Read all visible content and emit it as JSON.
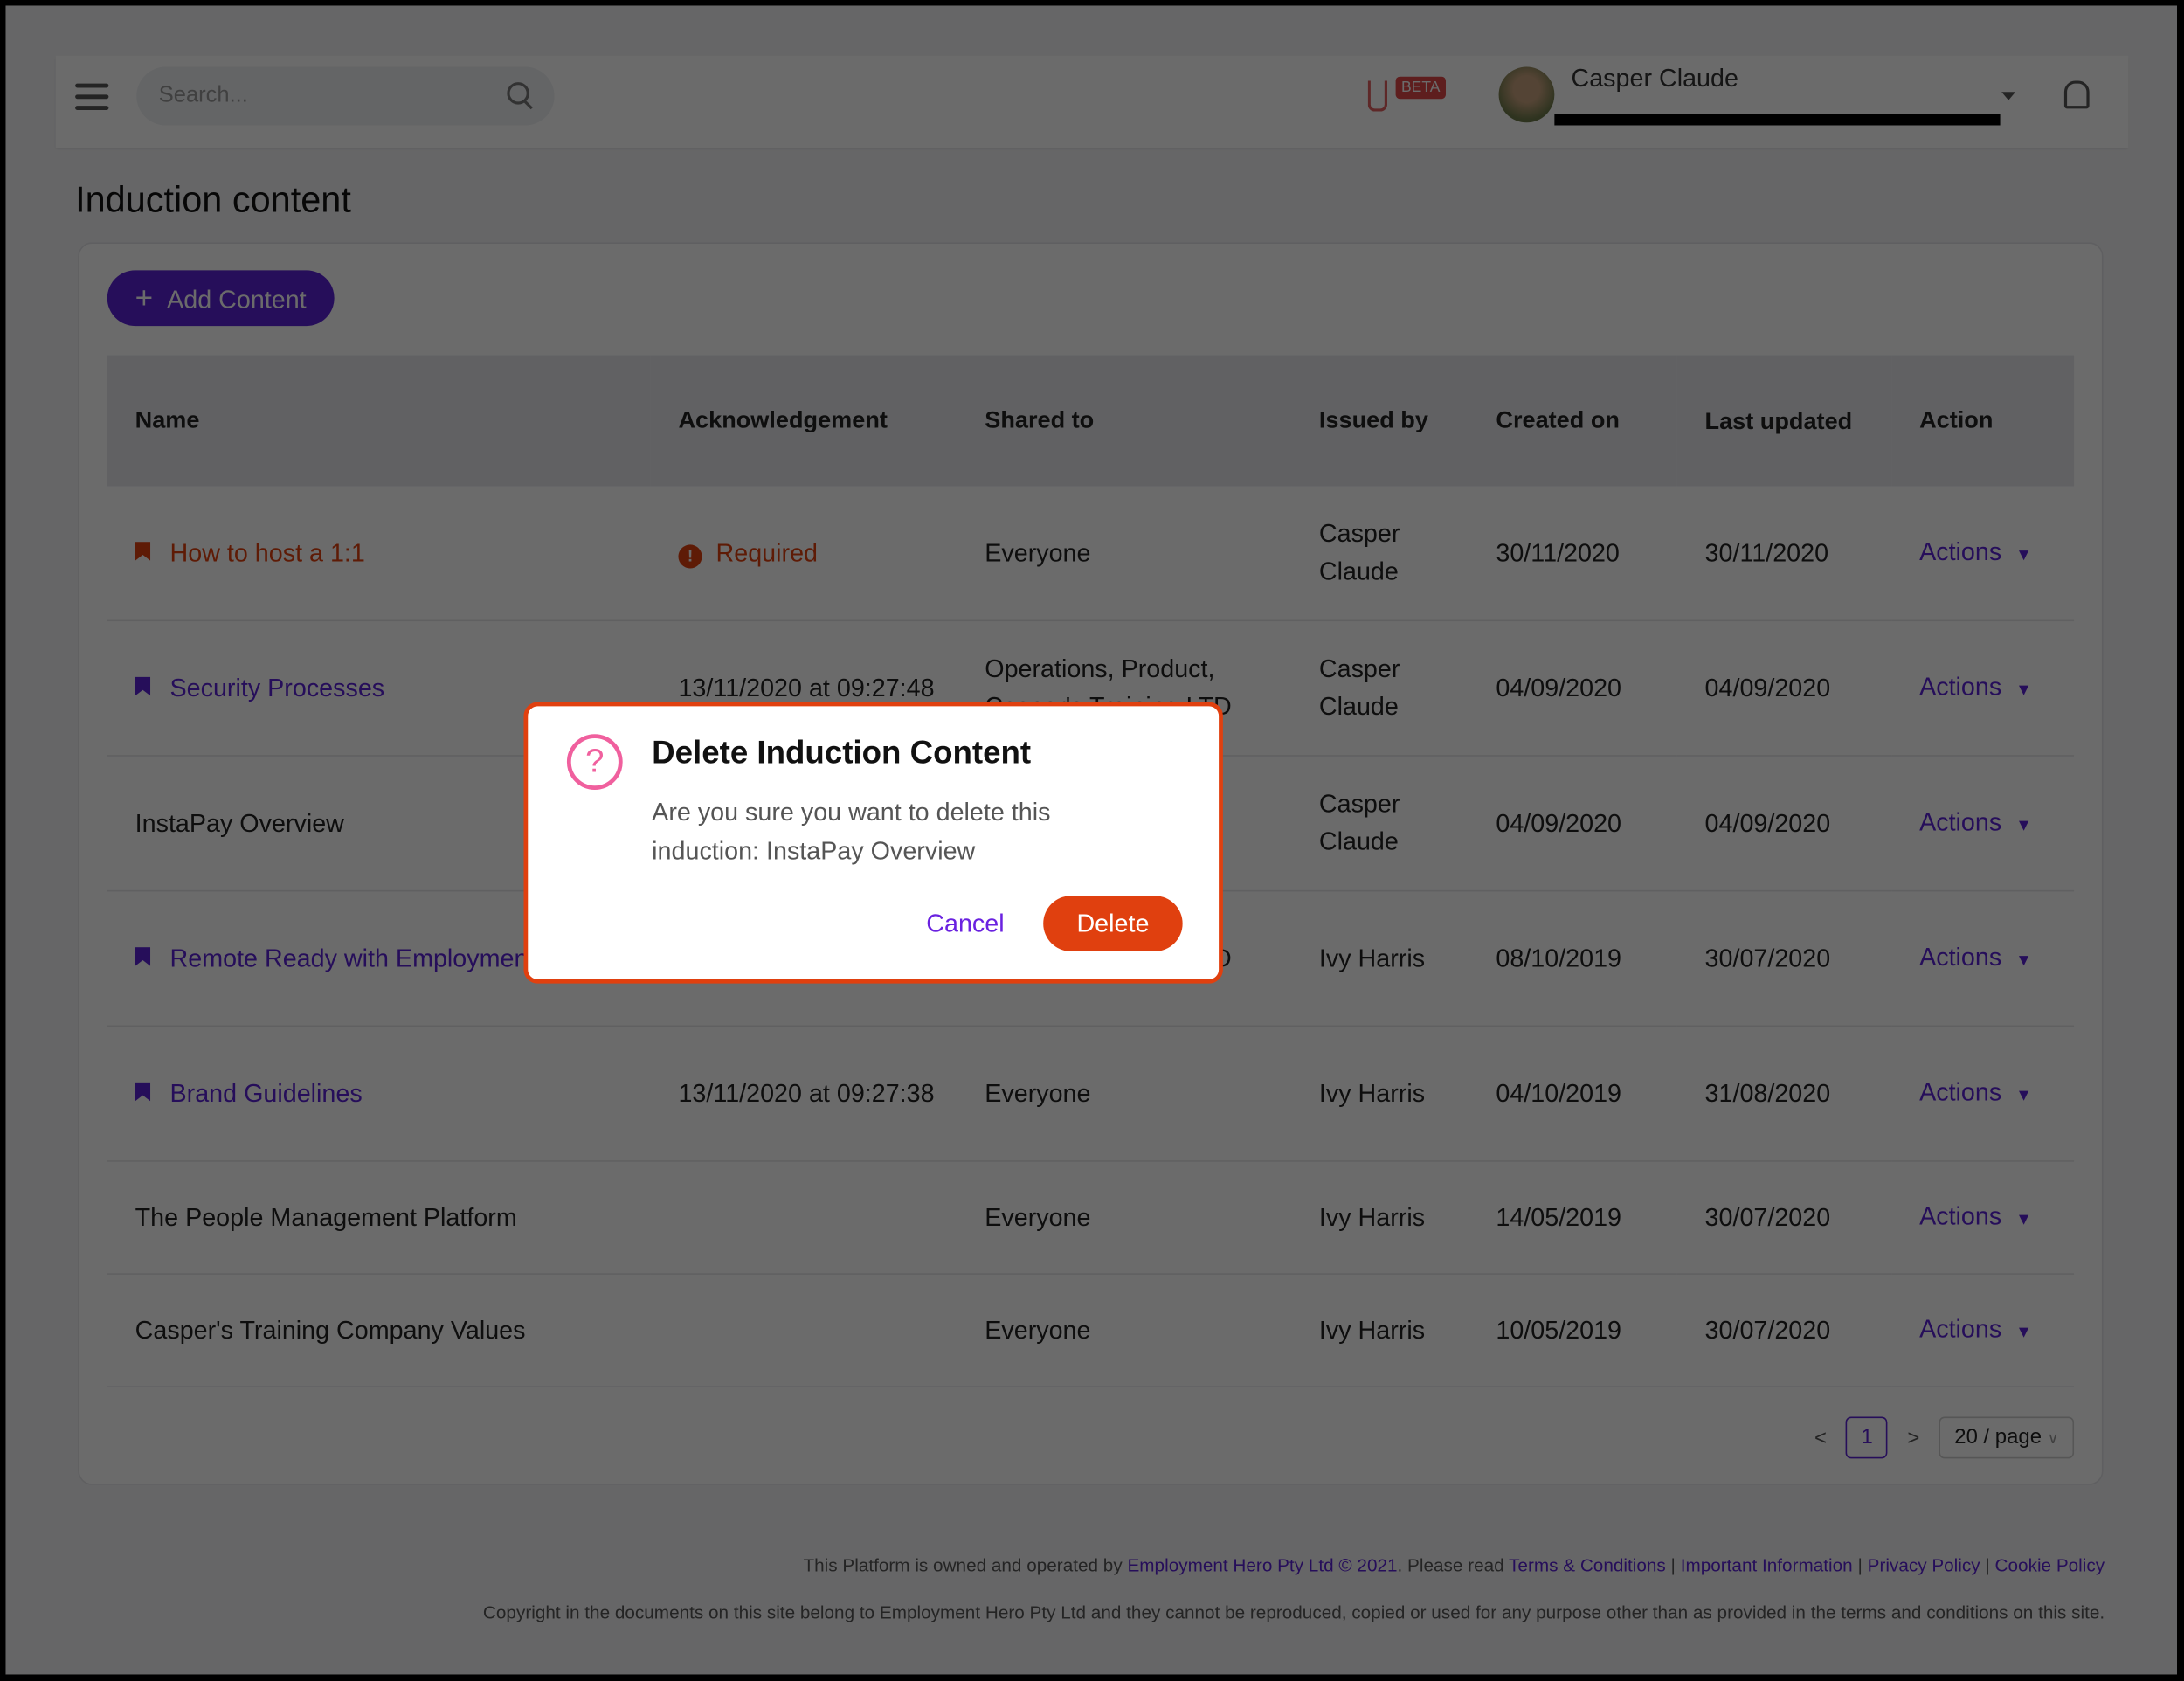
{
  "header": {
    "search_placeholder": "Search...",
    "beta": "BETA",
    "user_name": "Casper Claude"
  },
  "page_title": "Induction content",
  "add_button": "Add Content",
  "table": {
    "columns": [
      "Name",
      "Acknowledgement",
      "Shared to",
      "Issued by",
      "Created on",
      "Last updated",
      "Action"
    ],
    "rows": [
      {
        "name": "How to host a 1:1",
        "ack": "Required",
        "shared": "Everyone",
        "issued": "Casper Claude",
        "created": "30/11/2020",
        "updated": "30/11/2020",
        "action": "Actions"
      },
      {
        "name": "Security Processes",
        "ack": "13/11/2020 at 09:27:48",
        "shared": "Operations, Product, Casper's Training LTD",
        "issued": "Casper Claude",
        "created": "04/09/2020",
        "updated": "04/09/2020",
        "action": "Actions"
      },
      {
        "name": "InstaPay Overview",
        "ack": "",
        "shared": "",
        "issued": "Casper Claude",
        "created": "04/09/2020",
        "updated": "04/09/2020",
        "action": "Actions"
      },
      {
        "name": "Remote Ready with Employment Hero",
        "ack": "",
        "shared": "Casper's Training LTD",
        "issued": "Ivy Harris",
        "created": "08/10/2019",
        "updated": "30/07/2020",
        "action": "Actions"
      },
      {
        "name": "Brand Guidelines",
        "ack": "13/11/2020 at 09:27:38",
        "shared": "Everyone",
        "issued": "Ivy Harris",
        "created": "04/10/2019",
        "updated": "31/08/2020",
        "action": "Actions"
      },
      {
        "name": "The People Management Platform",
        "ack": "",
        "shared": "Everyone",
        "issued": "Ivy Harris",
        "created": "14/05/2019",
        "updated": "30/07/2020",
        "action": "Actions"
      },
      {
        "name": "Casper's Training Company Values",
        "ack": "",
        "shared": "Everyone",
        "issued": "Ivy Harris",
        "created": "10/05/2019",
        "updated": "30/07/2020",
        "action": "Actions"
      }
    ]
  },
  "pagination": {
    "prev": "<",
    "current": "1",
    "next": ">",
    "page_size": "20 / page"
  },
  "footer": {
    "line1_prefix": "This Platform is owned and operated by ",
    "owner_link": "Employment Hero Pty Ltd © 2021",
    "line1_mid": ". Please read ",
    "links": [
      "Terms & Conditions",
      "Important Information",
      "Privacy Policy",
      "Cookie Policy"
    ],
    "line2": "Copyright in the documents on this site belong to Employment Hero Pty Ltd and they cannot be reproduced, copied or used for any purpose other than as provided in the terms and conditions on this site."
  },
  "modal": {
    "title": "Delete Induction Content",
    "body": "Are you sure you want to delete this induction: InstaPay Overview",
    "cancel": "Cancel",
    "confirm": "Delete"
  },
  "colors": {
    "primary": "#5b22d6",
    "danger": "#e0400f",
    "question_icon": "#f0609e"
  }
}
